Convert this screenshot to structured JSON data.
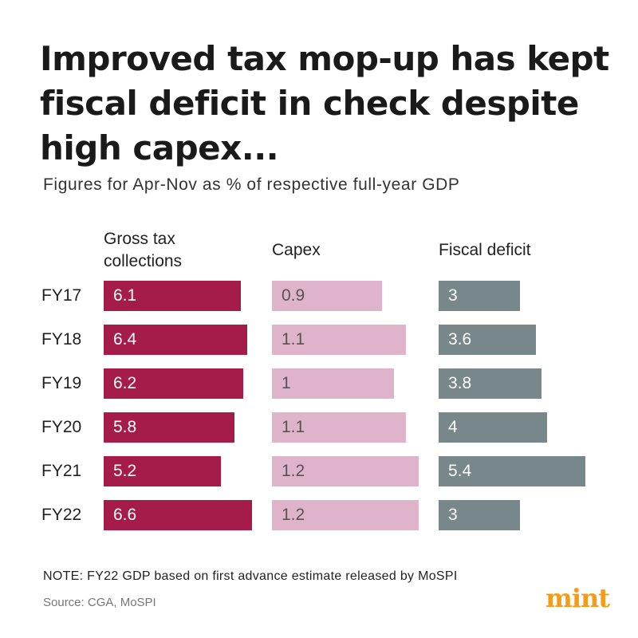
{
  "title": "Improved tax mop-up has kept fiscal deficit in check despite high capex...",
  "subtitle": "Figures for Apr-Nov as % of respective full-year GDP",
  "note": "NOTE: FY22 GDP based on first advance estimate released by MoSPI",
  "source": "Source: CGA, MoSPI",
  "logo": "mint",
  "colors": {
    "tax": "#a51b4a",
    "capex": "#dfb4cb",
    "fiscal": "#78878a",
    "logo": "#f39c1a"
  },
  "chart_data": {
    "type": "bar",
    "orientation": "horizontal",
    "categories": [
      "FY17",
      "FY18",
      "FY19",
      "FY20",
      "FY21",
      "FY22"
    ],
    "series": [
      {
        "name": "Gross tax collections",
        "values": [
          6.1,
          6.4,
          6.2,
          5.8,
          5.2,
          6.6
        ]
      },
      {
        "name": "Capex",
        "values": [
          0.9,
          1.1,
          1,
          1.1,
          1.2,
          1.2
        ]
      },
      {
        "name": "Fiscal deficit",
        "values": [
          3,
          3.6,
          3.8,
          4,
          5.4,
          3
        ]
      }
    ],
    "value_labels": [
      [
        "6.1",
        "6.4",
        "6.2",
        "5.8",
        "5.2",
        "6.6"
      ],
      [
        "0.9",
        "1.1",
        "1",
        "1.1",
        "1.2",
        "1.2"
      ],
      [
        "3",
        "3.6",
        "3.8",
        "4",
        "5.4",
        "3"
      ]
    ],
    "grid": false,
    "legend": "none"
  }
}
